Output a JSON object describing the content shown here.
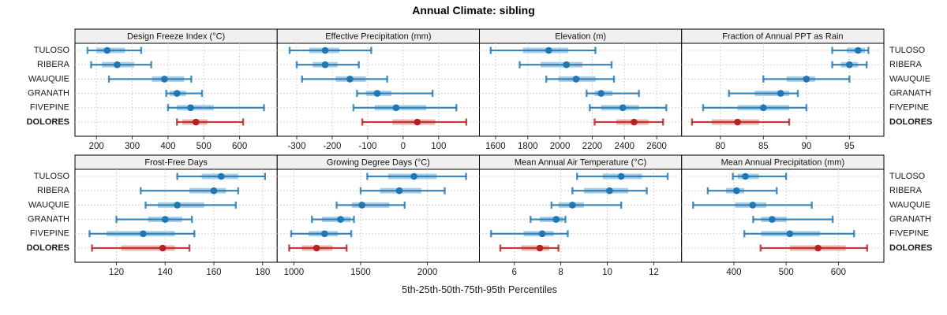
{
  "chart_data": {
    "type": "interval",
    "title": "Annual Climate: sibling",
    "caption": "5th-25th-50th-75th-95th Percentiles",
    "percentiles": [
      5,
      25,
      50,
      75,
      95
    ],
    "stations": [
      "TULOSO",
      "RIBERA",
      "WAUQUIE",
      "GRANATH",
      "FIVEPINE",
      "DOLORES"
    ],
    "highlight_station": "DOLORES",
    "legend_position": "none",
    "grid": "dotted",
    "colors": {
      "series_dark": "#1f77b4",
      "series_light": "#a9cfe8",
      "highlight_dark": "#b22222",
      "highlight_light": "#ecb5ae",
      "gridline": "#c9c9c9",
      "header_bg": "#f0f0f0",
      "border": "#000000",
      "text": "#1a1a1a"
    },
    "panels": [
      {
        "title": "Design Freeze Index (°C)",
        "xlim": [
          140,
          705
        ],
        "ticks": [
          200,
          300,
          400,
          500,
          600
        ],
        "series": [
          {
            "station": "TULOSO",
            "p": [
              175,
              200,
              230,
              280,
              325
            ]
          },
          {
            "station": "RIBERA",
            "p": [
              185,
              215,
              258,
              305,
              353
            ]
          },
          {
            "station": "WAUQUIE",
            "p": [
              235,
              355,
              390,
              445,
              465
            ]
          },
          {
            "station": "GRANATH",
            "p": [
              395,
              405,
              425,
              450,
              495
            ]
          },
          {
            "station": "FIVEPINE",
            "p": [
              400,
              425,
              463,
              528,
              668
            ]
          },
          {
            "station": "DOLORES",
            "p": [
              425,
              440,
              478,
              510,
              610
            ]
          }
        ]
      },
      {
        "title": "Effective Precipitation (mm)",
        "xlim": [
          -355,
          215
        ],
        "ticks": [
          -300,
          -200,
          -100,
          0,
          100
        ],
        "series": [
          {
            "station": "TULOSO",
            "p": [
              -320,
              -265,
              -220,
              -180,
              -90
            ]
          },
          {
            "station": "RIBERA",
            "p": [
              -300,
              -255,
              -220,
              -185,
              -125
            ]
          },
          {
            "station": "WAUQUIE",
            "p": [
              -285,
              -190,
              -150,
              -105,
              -45
            ]
          },
          {
            "station": "GRANATH",
            "p": [
              -130,
              -105,
              -73,
              -33,
              83
            ]
          },
          {
            "station": "FIVEPINE",
            "p": [
              -140,
              -80,
              -20,
              65,
              150
            ]
          },
          {
            "station": "DOLORES",
            "p": [
              -115,
              -30,
              40,
              90,
              178
            ]
          }
        ]
      },
      {
        "title": "Elevation (m)",
        "xlim": [
          1500,
          2755
        ],
        "ticks": [
          1600,
          1800,
          2000,
          2200,
          2400,
          2600
        ],
        "series": [
          {
            "station": "TULOSO",
            "p": [
              1570,
              1770,
              1930,
              2050,
              2220
            ]
          },
          {
            "station": "RIBERA",
            "p": [
              1750,
              1880,
              2040,
              2140,
              2320
            ]
          },
          {
            "station": "WAUQUIE",
            "p": [
              1915,
              1990,
              2100,
              2220,
              2335
            ]
          },
          {
            "station": "GRANATH",
            "p": [
              2165,
              2215,
              2255,
              2325,
              2490
            ]
          },
          {
            "station": "FIVEPINE",
            "p": [
              2185,
              2255,
              2390,
              2490,
              2660
            ]
          },
          {
            "station": "DOLORES",
            "p": [
              2215,
              2350,
              2460,
              2550,
              2640
            ]
          }
        ]
      },
      {
        "title": "Fraction of Annual PPT as Rain",
        "xlim": [
          75.5,
          99
        ],
        "ticks": [
          80,
          85,
          90,
          95
        ],
        "series": [
          {
            "station": "TULOSO",
            "p": [
              93,
              94.7,
              96,
              96.8,
              97.2
            ]
          },
          {
            "station": "RIBERA",
            "p": [
              93,
              94,
              95,
              96,
              97
            ]
          },
          {
            "station": "WAUQUIE",
            "p": [
              85,
              87.7,
              90,
              91,
              95
            ]
          },
          {
            "station": "GRANATH",
            "p": [
              81,
              84,
              87,
              88,
              89
            ]
          },
          {
            "station": "FIVEPINE",
            "p": [
              78,
              82,
              85,
              88,
              90
            ]
          },
          {
            "station": "DOLORES",
            "p": [
              76.7,
              79,
              82,
              84.5,
              88
            ]
          }
        ]
      },
      {
        "title": "Frost-Free Days",
        "xlim": [
          103,
          186
        ],
        "ticks": [
          120,
          140,
          160,
          180
        ],
        "series": [
          {
            "station": "TULOSO",
            "p": [
              145,
              155,
              163,
              170,
              181
            ]
          },
          {
            "station": "RIBERA",
            "p": [
              130,
              150,
              160,
              165,
              170
            ]
          },
          {
            "station": "WAUQUIE",
            "p": [
              132,
              137,
              145,
              156,
              169
            ]
          },
          {
            "station": "GRANATH",
            "p": [
              120,
              133,
              140,
              147,
              151
            ]
          },
          {
            "station": "FIVEPINE",
            "p": [
              109,
              116,
              131,
              144,
              152
            ]
          },
          {
            "station": "DOLORES",
            "p": [
              110,
              122,
              139,
              144,
              150
            ]
          }
        ]
      },
      {
        "title": "Growing Degree Days (°C)",
        "xlim": [
          875,
          2390
        ],
        "ticks": [
          1000,
          1500,
          2000
        ],
        "series": [
          {
            "station": "TULOSO",
            "p": [
              1550,
              1705,
              1900,
              2070,
              2290
            ]
          },
          {
            "station": "RIBERA",
            "p": [
              1500,
              1645,
              1790,
              1955,
              2130
            ]
          },
          {
            "station": "WAUQUIE",
            "p": [
              1320,
              1435,
              1510,
              1715,
              1830
            ]
          },
          {
            "station": "GRANATH",
            "p": [
              1135,
              1210,
              1350,
              1425,
              1450
            ]
          },
          {
            "station": "FIVEPINE",
            "p": [
              980,
              1110,
              1230,
              1330,
              1430
            ]
          },
          {
            "station": "DOLORES",
            "p": [
              965,
              1060,
              1170,
              1290,
              1395
            ]
          }
        ]
      },
      {
        "title": "Mean Annual Air Temperature (°C)",
        "xlim": [
          4.5,
          13.2
        ],
        "ticks": [
          6,
          8,
          10,
          12
        ],
        "series": [
          {
            "station": "TULOSO",
            "p": [
              8.7,
              9.8,
              10.6,
              11.5,
              12.6
            ]
          },
          {
            "station": "RIBERA",
            "p": [
              8.5,
              9.0,
              10.1,
              10.9,
              11.7
            ]
          },
          {
            "station": "WAUQUIE",
            "p": [
              7.6,
              7.9,
              8.5,
              9.0,
              10.6
            ]
          },
          {
            "station": "GRANATH",
            "p": [
              6.7,
              7.1,
              7.8,
              8.1,
              8.2
            ]
          },
          {
            "station": "FIVEPINE",
            "p": [
              5.0,
              6.4,
              7.2,
              7.7,
              8.3
            ]
          },
          {
            "station": "DOLORES",
            "p": [
              5.4,
              6.3,
              7.1,
              7.5,
              7.9
            ]
          }
        ]
      },
      {
        "title": "Mean Annual Precipitation (mm)",
        "xlim": [
          300,
          687
        ],
        "ticks": [
          400,
          500,
          600
        ],
        "series": [
          {
            "station": "TULOSO",
            "p": [
              398,
              407,
              422,
              448,
              500
            ]
          },
          {
            "station": "RIBERA",
            "p": [
              350,
              385,
              405,
              420,
              482
            ]
          },
          {
            "station": "WAUQUIE",
            "p": [
              322,
              402,
              436,
              462,
              549
            ]
          },
          {
            "station": "GRANATH",
            "p": [
              437,
              452,
              473,
              501,
              589
            ]
          },
          {
            "station": "FIVEPINE",
            "p": [
              420,
              452,
              507,
              565,
              630
            ]
          },
          {
            "station": "DOLORES",
            "p": [
              451,
              507,
              561,
              614,
              655
            ]
          }
        ]
      }
    ]
  }
}
